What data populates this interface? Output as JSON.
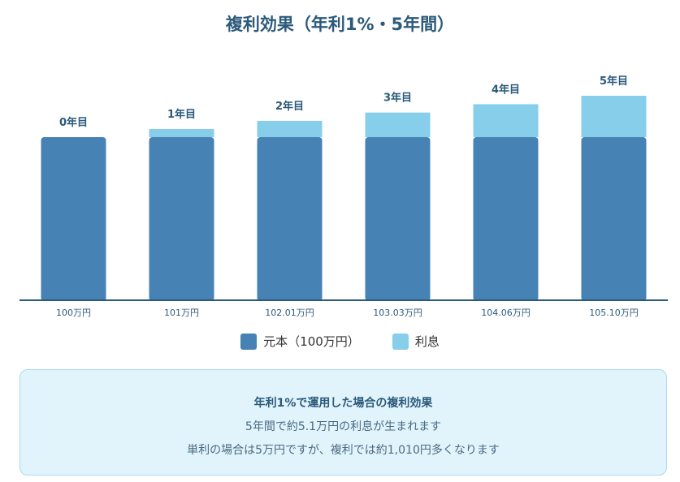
{
  "chart_data": {
    "type": "bar",
    "stacked": true,
    "title": "複利効果（年利1%・5年間）",
    "categories": [
      "100万円",
      "101万円",
      "102.01万円",
      "103.03万円",
      "104.06万円",
      "105.10万円"
    ],
    "bar_labels": [
      "0年目",
      "1年目",
      "2年目",
      "3年目",
      "4年目",
      "5年目"
    ],
    "series": [
      {
        "name": "元本（100万円）",
        "values": [
          100,
          100,
          100,
          100,
          100,
          100
        ],
        "color": "#4682b4"
      },
      {
        "name": "利息",
        "values": [
          0,
          1,
          2.01,
          3.03,
          4.06,
          5.1
        ],
        "color": "#87ceeb"
      }
    ],
    "legend_position": "bottom",
    "grid": false
  },
  "info": {
    "heading": "年利1%で運用した場合の複利効果",
    "line1": "5年間で約5.1万円の利息が生まれます",
    "line2": "単利の場合は5万円ですが、複利では約1,010円多くなります"
  },
  "colors": {
    "axis": "#2c5a7a",
    "info_background": "#e1f4fc",
    "info_border": "#a9d9ef"
  }
}
